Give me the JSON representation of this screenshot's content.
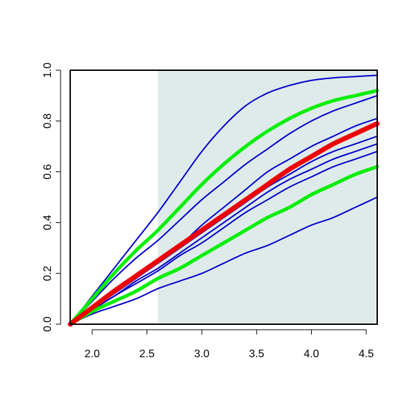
{
  "chart_data": {
    "type": "line",
    "title": "",
    "xlabel": "",
    "ylabel": "",
    "xlim": [
      1.8,
      4.6
    ],
    "ylim": [
      0.0,
      1.0
    ],
    "x_ticks": [
      2.0,
      2.5,
      3.0,
      3.5,
      4.0,
      4.5
    ],
    "x_tick_labels": [
      "2.0",
      "2.5",
      "3.0",
      "3.5",
      "4.0",
      "4.5"
    ],
    "y_ticks": [
      0.0,
      0.2,
      0.4,
      0.6,
      0.8,
      1.0
    ],
    "y_tick_labels": [
      "0.0",
      "0.2",
      "0.4",
      "0.6",
      "0.8",
      "1.0"
    ],
    "shaded_region": {
      "x_from": 2.6,
      "x_to": 4.6,
      "color": "#deebea"
    },
    "x": [
      1.8,
      2.0,
      2.2,
      2.4,
      2.6,
      2.8,
      3.0,
      3.2,
      3.4,
      3.6,
      3.8,
      4.0,
      4.2,
      4.4,
      4.6
    ],
    "series": [
      {
        "color": "#0000cc",
        "width": 2,
        "values": [
          0.0,
          0.11,
          0.22,
          0.33,
          0.44,
          0.56,
          0.68,
          0.78,
          0.86,
          0.91,
          0.94,
          0.96,
          0.97,
          0.975,
          0.98
        ]
      },
      {
        "color": "#0000cc",
        "width": 2,
        "values": [
          0.0,
          0.09,
          0.18,
          0.26,
          0.33,
          0.41,
          0.49,
          0.56,
          0.63,
          0.69,
          0.75,
          0.8,
          0.84,
          0.87,
          0.9
        ]
      },
      {
        "color": "#0000cc",
        "width": 2,
        "values": [
          0.0,
          0.07,
          0.13,
          0.19,
          0.25,
          0.31,
          0.39,
          0.46,
          0.53,
          0.6,
          0.65,
          0.7,
          0.74,
          0.78,
          0.81
        ]
      },
      {
        "color": "#0000cc",
        "width": 2,
        "values": [
          0.0,
          0.06,
          0.12,
          0.18,
          0.24,
          0.3,
          0.36,
          0.42,
          0.48,
          0.54,
          0.59,
          0.64,
          0.68,
          0.71,
          0.74
        ]
      },
      {
        "color": "#0000cc",
        "width": 2,
        "values": [
          0.0,
          0.06,
          0.11,
          0.17,
          0.22,
          0.28,
          0.34,
          0.4,
          0.46,
          0.52,
          0.57,
          0.61,
          0.65,
          0.68,
          0.71
        ]
      },
      {
        "color": "#0000cc",
        "width": 2,
        "values": [
          0.0,
          0.055,
          0.11,
          0.16,
          0.21,
          0.27,
          0.32,
          0.38,
          0.44,
          0.49,
          0.54,
          0.58,
          0.62,
          0.65,
          0.68
        ]
      },
      {
        "color": "#0000cc",
        "width": 2,
        "values": [
          0.0,
          0.04,
          0.07,
          0.1,
          0.14,
          0.17,
          0.2,
          0.24,
          0.28,
          0.31,
          0.35,
          0.39,
          0.42,
          0.46,
          0.5
        ]
      },
      {
        "color": "#00ee00",
        "width": 5,
        "values": [
          0.0,
          0.1,
          0.2,
          0.29,
          0.37,
          0.46,
          0.55,
          0.63,
          0.7,
          0.76,
          0.81,
          0.85,
          0.88,
          0.9,
          0.92
        ]
      },
      {
        "color": "#00ee00",
        "width": 5,
        "values": [
          0.0,
          0.05,
          0.09,
          0.13,
          0.18,
          0.22,
          0.27,
          0.32,
          0.37,
          0.42,
          0.46,
          0.51,
          0.55,
          0.59,
          0.62
        ]
      },
      {
        "color": "#ee0000",
        "width": 7,
        "values": [
          0.0,
          0.065,
          0.13,
          0.19,
          0.25,
          0.31,
          0.37,
          0.43,
          0.49,
          0.55,
          0.61,
          0.66,
          0.71,
          0.75,
          0.79
        ]
      }
    ]
  }
}
